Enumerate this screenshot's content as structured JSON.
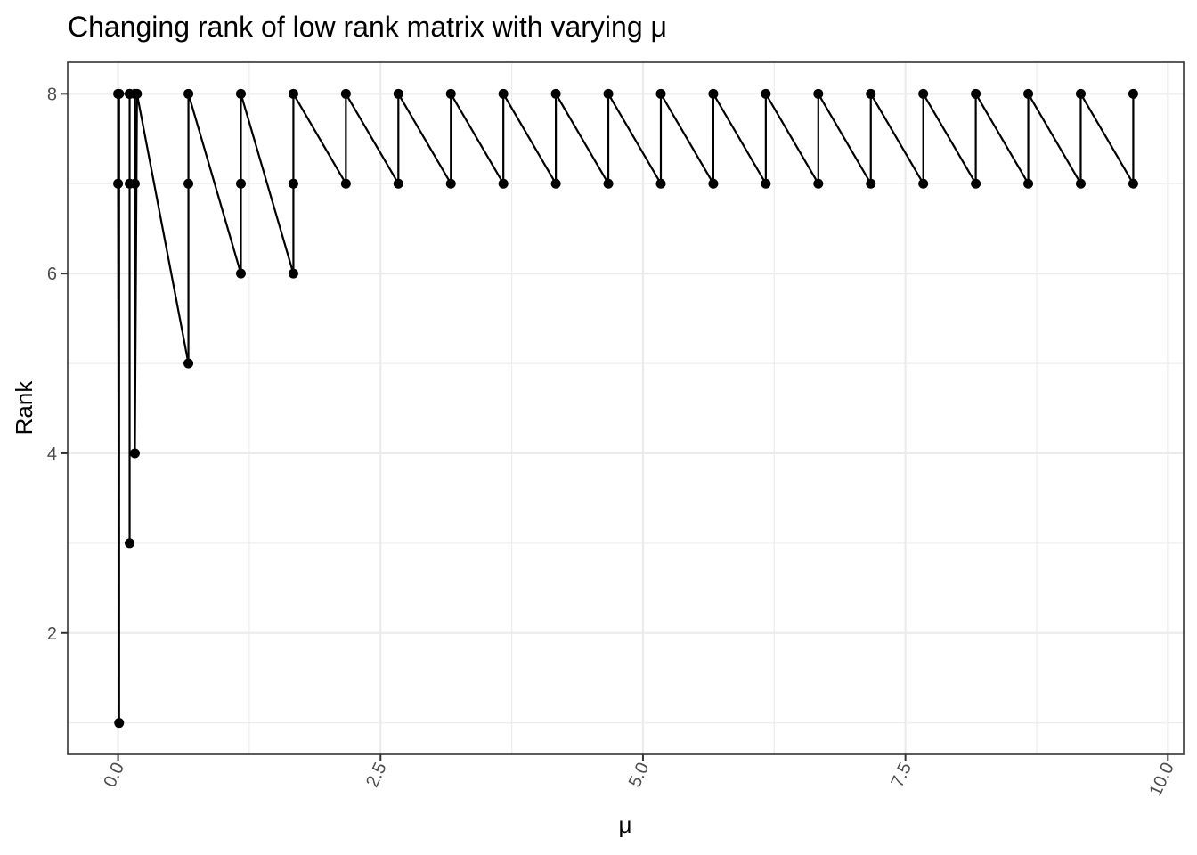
{
  "chart_data": {
    "type": "line",
    "title": "Changing rank of low rank matrix with varying μ",
    "xlabel": "μ",
    "ylabel": "Rank",
    "xlim": [
      -0.48,
      10.15
    ],
    "ylim": [
      0.65,
      8.35
    ],
    "x_ticks": [
      0,
      2.5,
      5,
      7.5,
      10
    ],
    "x_tick_labels": [
      "0.0",
      "2.5",
      "5.0",
      "7.5",
      "10.0"
    ],
    "x_minor": [
      1.25,
      3.75,
      6.25,
      8.75
    ],
    "y_ticks": [
      2,
      4,
      6,
      8
    ],
    "y_tick_labels": [
      "2",
      "4",
      "6",
      "8"
    ],
    "y_minor": [
      1,
      3,
      5,
      7
    ],
    "grid": true,
    "legend": "none",
    "series": [
      {
        "points": [
          [
            0.0,
            8
          ],
          [
            0.0,
            7
          ],
          [
            0.01,
            1
          ],
          [
            0.01,
            8
          ],
          [
            0.11,
            8
          ],
          [
            0.11,
            7
          ],
          [
            0.11,
            3
          ],
          [
            0.11,
            8
          ],
          [
            0.16,
            8
          ],
          [
            0.16,
            7
          ],
          [
            0.16,
            4
          ],
          [
            0.18,
            8
          ],
          [
            0.67,
            5
          ],
          [
            0.67,
            7
          ],
          [
            0.67,
            8
          ],
          [
            1.17,
            6
          ],
          [
            1.17,
            7
          ],
          [
            1.17,
            8
          ],
          [
            1.67,
            6
          ],
          [
            1.67,
            7
          ],
          [
            1.67,
            8
          ],
          [
            2.17,
            7
          ],
          [
            2.17,
            8
          ],
          [
            2.67,
            7
          ],
          [
            2.67,
            8
          ],
          [
            3.17,
            7
          ],
          [
            3.17,
            8
          ],
          [
            3.67,
            7
          ],
          [
            3.67,
            8
          ],
          [
            4.17,
            7
          ],
          [
            4.17,
            8
          ],
          [
            4.67,
            7
          ],
          [
            4.67,
            8
          ],
          [
            5.17,
            7
          ],
          [
            5.17,
            8
          ],
          [
            5.67,
            7
          ],
          [
            5.67,
            8
          ],
          [
            6.17,
            7
          ],
          [
            6.17,
            8
          ],
          [
            6.67,
            7
          ],
          [
            6.67,
            8
          ],
          [
            7.17,
            7
          ],
          [
            7.17,
            8
          ],
          [
            7.67,
            7
          ],
          [
            7.67,
            8
          ],
          [
            8.17,
            7
          ],
          [
            8.17,
            8
          ],
          [
            8.67,
            7
          ],
          [
            8.67,
            8
          ],
          [
            9.17,
            7
          ],
          [
            9.17,
            8
          ],
          [
            9.67,
            7
          ],
          [
            9.67,
            8
          ]
        ],
        "color": "#000000"
      }
    ]
  }
}
